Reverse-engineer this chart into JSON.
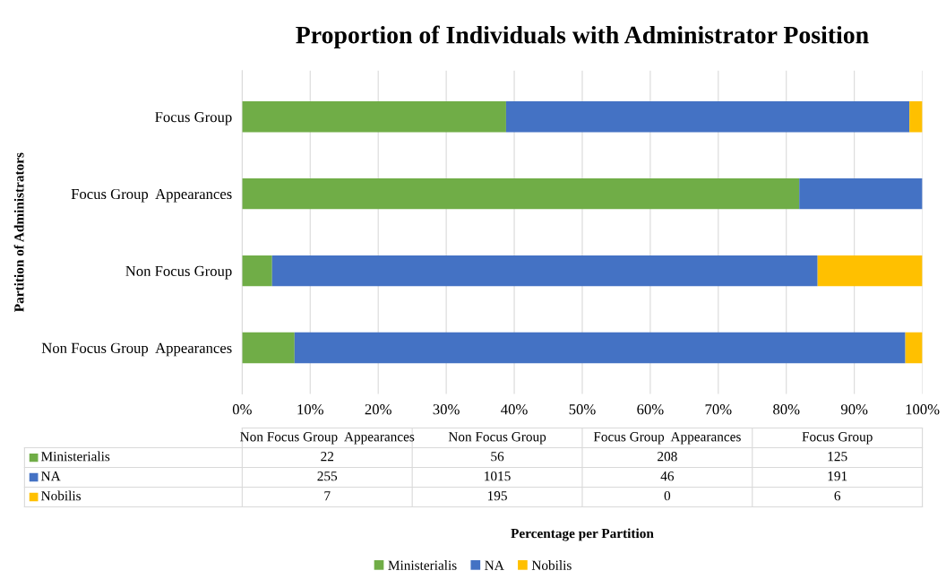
{
  "chart_data": [
    {
      "type": "bar",
      "orientation": "horizontal",
      "stacked": true,
      "title": "Proportion of Individuals with Administrator Position",
      "xlabel": "Percentage per Partition",
      "ylabel": "Partition of Administrators",
      "categories": [
        "Focus Group",
        "Focus Group  Appearances",
        "Non Focus Group",
        "Non Focus Group  Appearances"
      ],
      "series": [
        {
          "name": "Ministerialis",
          "color": "#70ad47",
          "values": [
            38.8,
            81.9,
            4.4,
            7.7
          ]
        },
        {
          "name": "NA",
          "color": "#4472c4",
          "values": [
            59.3,
            18.1,
            80.2,
            89.8
          ]
        },
        {
          "name": "Nobilis",
          "color": "#ffc000",
          "values": [
            1.9,
            0,
            15.4,
            2.5
          ]
        }
      ],
      "xlim": [
        0,
        100
      ],
      "xticks": [
        {
          "value": 0,
          "label": "0%"
        },
        {
          "value": 10,
          "label": "10%"
        },
        {
          "value": 20,
          "label": "20%"
        },
        {
          "value": 30,
          "label": "30%"
        },
        {
          "value": 40,
          "label": "40%"
        },
        {
          "value": 50,
          "label": "50%"
        },
        {
          "value": 60,
          "label": "60%"
        },
        {
          "value": 70,
          "label": "70%"
        },
        {
          "value": 80,
          "label": "80%"
        },
        {
          "value": 90,
          "label": "90%"
        },
        {
          "value": 100,
          "label": "100%"
        }
      ],
      "grid": "x",
      "legend": "bottom"
    },
    {
      "type": "other",
      "data_labels": true,
      "categories": [
        "Non Focus Group  Appearances",
        "Non Focus Group",
        "Focus Group  Appearances",
        "Focus Group"
      ],
      "series": [
        {
          "name": "Ministerialis",
          "color": "#70ad47",
          "values": [
            22,
            56,
            208,
            125
          ]
        },
        {
          "name": "NA",
          "color": "#4472c4",
          "values": [
            255,
            1015,
            46,
            191
          ]
        },
        {
          "name": "Nobilis",
          "color": "#ffc000",
          "values": [
            7,
            195,
            0,
            6
          ]
        }
      ]
    }
  ]
}
